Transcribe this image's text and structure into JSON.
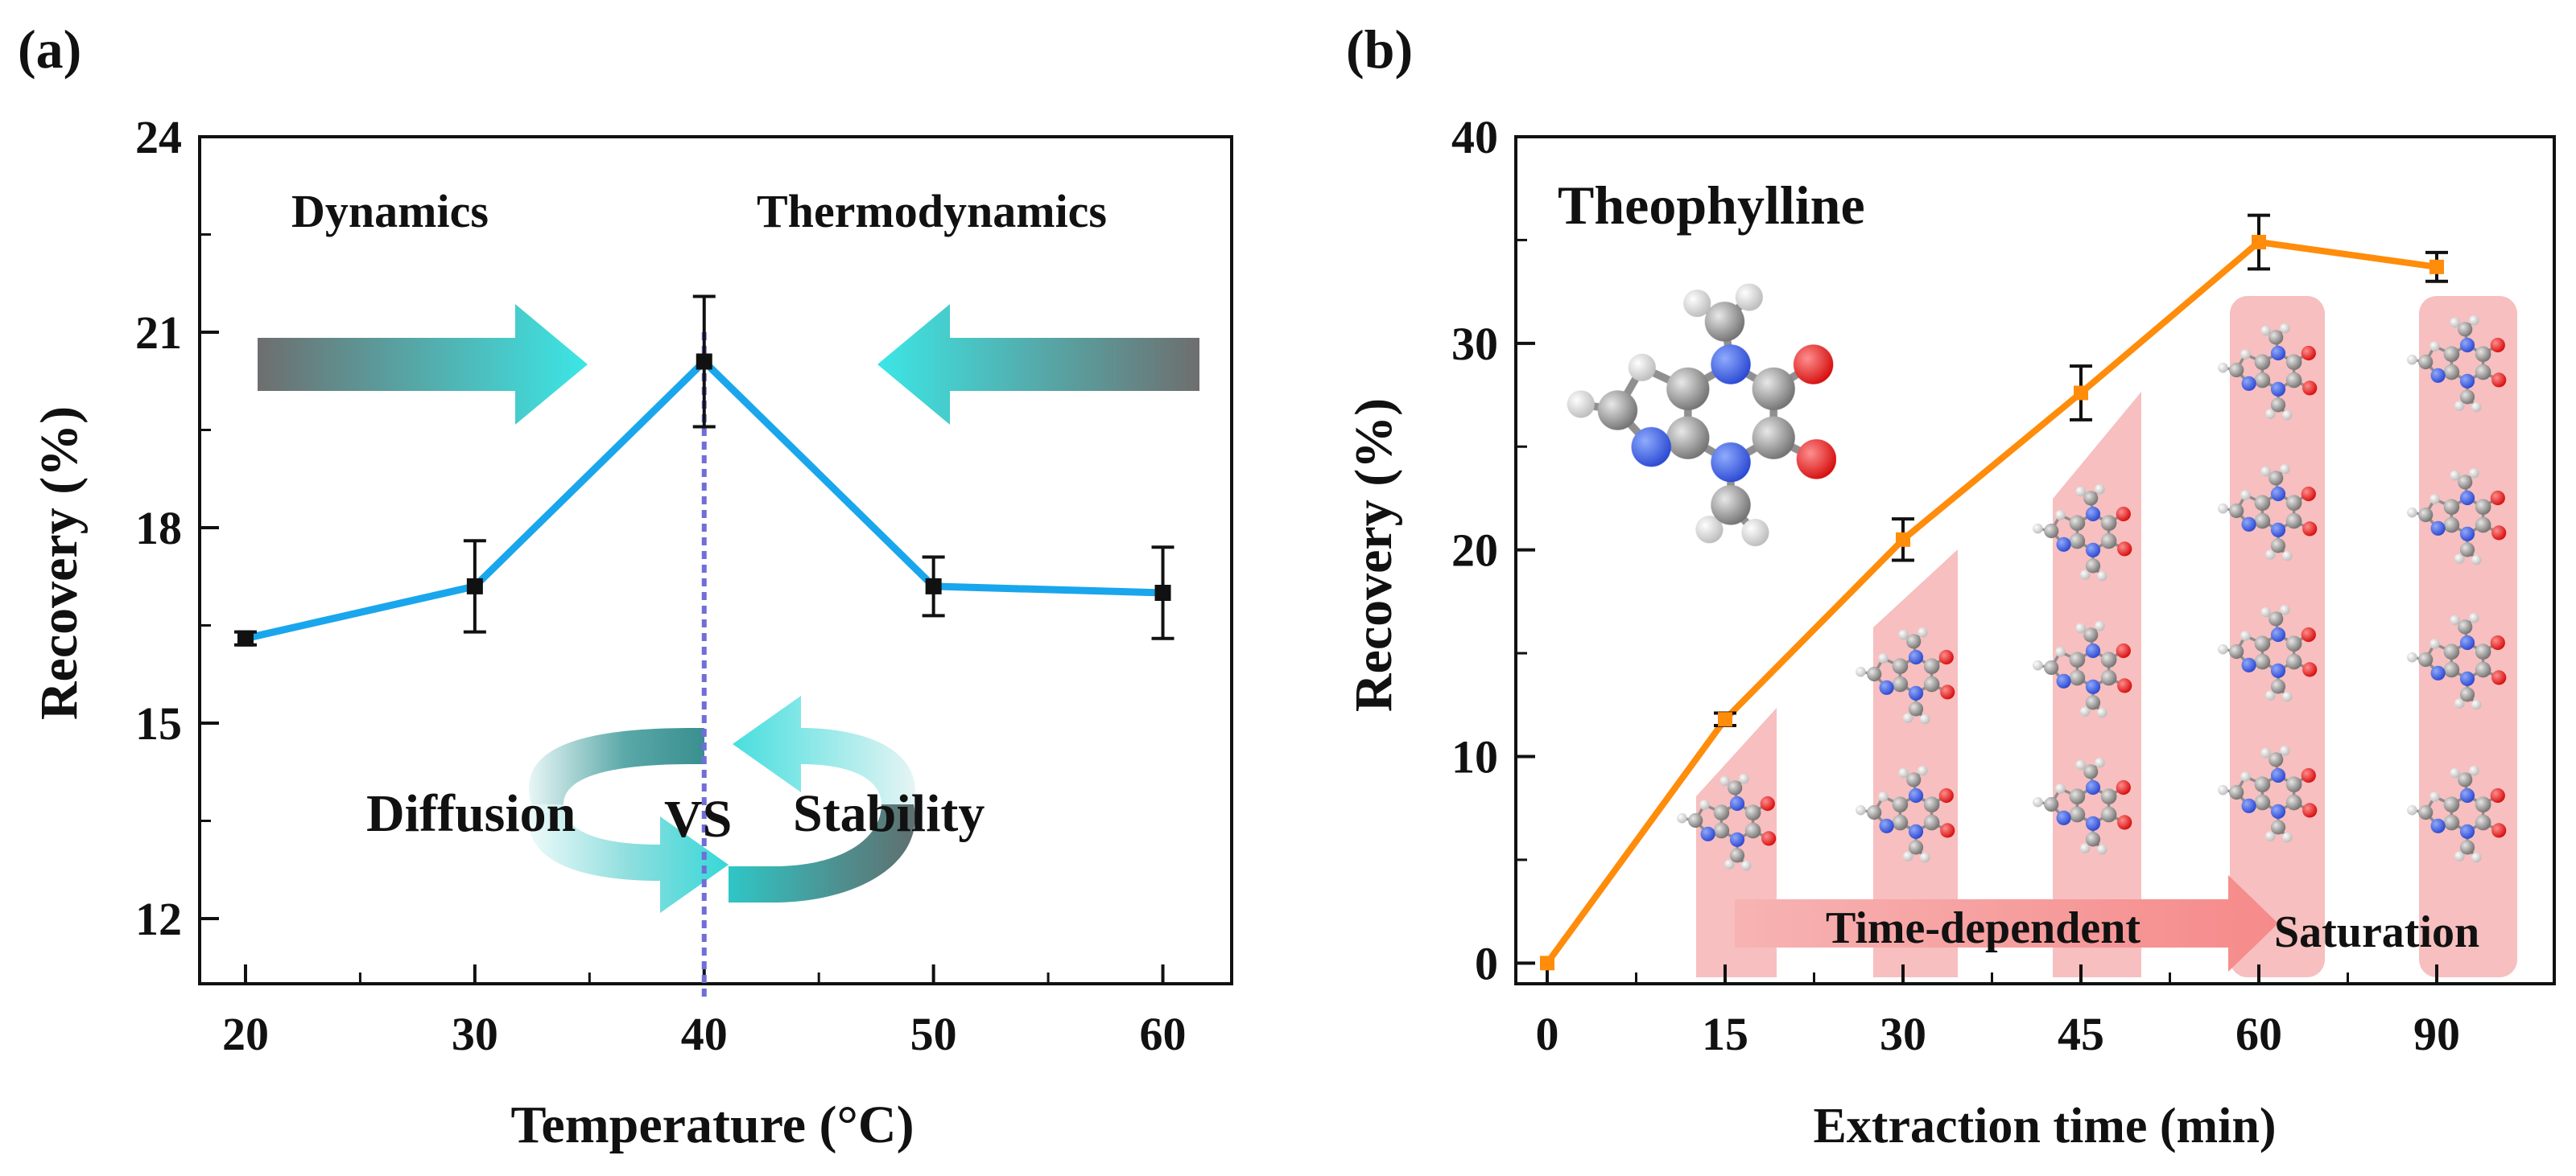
{
  "chart_data": [
    {
      "panel_label": "(a)",
      "type": "line",
      "title": "",
      "xlabel": "Temperature (°C)",
      "ylabel": "Recovery (%)",
      "x": [
        20,
        30,
        40,
        50,
        60
      ],
      "values": [
        16.3,
        17.1,
        20.55,
        17.1,
        17.0
      ],
      "errors": [
        0.1,
        0.7,
        1.0,
        0.45,
        0.7
      ],
      "xlim": [
        18,
        63
      ],
      "ylim": [
        11,
        24
      ],
      "xticks": [
        "20",
        "30",
        "40",
        "50",
        "60"
      ],
      "yticks": [
        "12",
        "15",
        "18",
        "21",
        "24"
      ],
      "line_color": "#1aa6ec",
      "marker_color": "#111111",
      "vline_x": 40,
      "vline_color": "#6f6fd8",
      "annotations": {
        "left": "Dynamics",
        "right": "Thermodynamics",
        "diffusion": "Diffusion",
        "vs": "VS",
        "stability": "Stability"
      },
      "arrow_colors": {
        "dark": "#707070",
        "light": "#35e0e0"
      }
    },
    {
      "panel_label": "(b)",
      "type": "line",
      "title": "",
      "xlabel": "Extraction time (min)",
      "ylabel": "Recovery (%)",
      "categories": [
        "0",
        "15",
        "30",
        "45",
        "60",
        "90"
      ],
      "values": [
        0,
        11.8,
        20.5,
        27.6,
        34.9,
        33.7
      ],
      "errors": [
        0,
        0.3,
        1.0,
        1.3,
        1.3,
        0.7
      ],
      "ylim": [
        -1,
        40
      ],
      "yticks": [
        "0",
        "10",
        "20",
        "30",
        "40"
      ],
      "line_color": "#ff8c0a",
      "annotations": {
        "compound": "Theophylline",
        "phase1": "Time-dependent",
        "phase2": "Saturation"
      },
      "pink_color": "#f4a8a8"
    }
  ]
}
